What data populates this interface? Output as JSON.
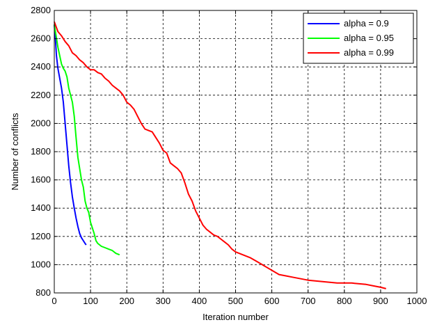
{
  "chart_data": {
    "type": "line",
    "title": "",
    "xlabel": "Iteration number",
    "ylabel": "Number of conflicts",
    "xlim": [
      0,
      1000
    ],
    "ylim": [
      800,
      2800
    ],
    "xticks": [
      0,
      100,
      200,
      300,
      400,
      500,
      600,
      700,
      800,
      900,
      1000
    ],
    "yticks": [
      800,
      1000,
      1200,
      1400,
      1600,
      1800,
      2000,
      2200,
      2400,
      2600,
      2800
    ],
    "grid": true,
    "legend_position": "top-right",
    "series": [
      {
        "name": "alpha = 0.9",
        "color": "#0000ff",
        "x": [
          0,
          3,
          6,
          10,
          15,
          20,
          25,
          30,
          35,
          40,
          45,
          50,
          55,
          60,
          65,
          70,
          75,
          80,
          85,
          88
        ],
        "y": [
          2700,
          2600,
          2480,
          2390,
          2320,
          2250,
          2150,
          2000,
          1850,
          1700,
          1580,
          1480,
          1400,
          1330,
          1270,
          1220,
          1190,
          1170,
          1150,
          1140
        ]
      },
      {
        "name": "alpha = 0.95",
        "color": "#00ff00",
        "x": [
          0,
          5,
          10,
          15,
          20,
          25,
          30,
          35,
          40,
          45,
          50,
          55,
          60,
          65,
          70,
          75,
          80,
          85,
          90,
          95,
          100,
          105,
          110,
          115,
          120,
          130,
          140,
          150,
          160,
          170,
          180
        ],
        "y": [
          2700,
          2620,
          2540,
          2480,
          2420,
          2390,
          2370,
          2330,
          2250,
          2200,
          2150,
          2050,
          1900,
          1760,
          1680,
          1600,
          1550,
          1450,
          1400,
          1370,
          1300,
          1260,
          1220,
          1170,
          1150,
          1130,
          1120,
          1110,
          1100,
          1080,
          1070
        ]
      },
      {
        "name": "alpha = 0.99",
        "color": "#ff0000",
        "x": [
          0,
          10,
          20,
          30,
          40,
          50,
          60,
          70,
          80,
          90,
          100,
          110,
          120,
          130,
          140,
          150,
          160,
          170,
          180,
          190,
          200,
          210,
          220,
          230,
          240,
          250,
          260,
          270,
          280,
          290,
          300,
          310,
          320,
          330,
          340,
          350,
          360,
          370,
          380,
          390,
          400,
          410,
          420,
          430,
          440,
          450,
          460,
          470,
          480,
          490,
          500,
          520,
          540,
          560,
          580,
          600,
          620,
          640,
          660,
          680,
          700,
          740,
          780,
          820,
          860,
          880,
          900,
          915
        ],
        "y": [
          2720,
          2650,
          2620,
          2580,
          2550,
          2500,
          2480,
          2450,
          2430,
          2400,
          2380,
          2380,
          2360,
          2350,
          2320,
          2300,
          2270,
          2250,
          2230,
          2200,
          2150,
          2130,
          2100,
          2050,
          2000,
          1960,
          1950,
          1940,
          1900,
          1860,
          1810,
          1790,
          1720,
          1700,
          1680,
          1650,
          1580,
          1500,
          1450,
          1380,
          1330,
          1280,
          1250,
          1230,
          1210,
          1200,
          1180,
          1160,
          1140,
          1110,
          1090,
          1070,
          1050,
          1020,
          990,
          960,
          930,
          920,
          910,
          900,
          890,
          880,
          870,
          870,
          860,
          850,
          840,
          830
        ]
      }
    ]
  }
}
